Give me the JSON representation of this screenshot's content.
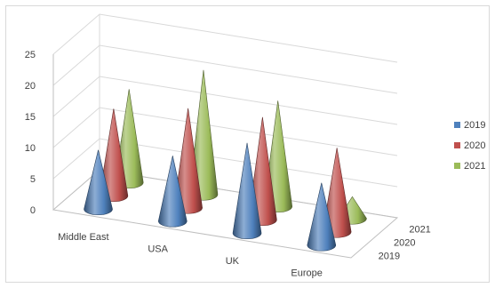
{
  "chart_data": {
    "type": "bar",
    "subtype": "3d-cone",
    "title": "",
    "xlabel": "",
    "ylabel": "",
    "categories": [
      "Middle East",
      "USA",
      "UK",
      "Europe"
    ],
    "series": [
      {
        "name": "2019",
        "values": [
          9.5,
          10.5,
          14.5,
          10
        ],
        "color": "#4f81bd"
      },
      {
        "name": "2020",
        "values": [
          14,
          16,
          16.5,
          13.5
        ],
        "color": "#c0504d"
      },
      {
        "name": "2021",
        "values": [
          15,
          20,
          17,
          3.5
        ],
        "color": "#9bbb59"
      }
    ],
    "depth_labels": [
      "2019",
      "2020",
      "2021"
    ],
    "y_ticks": [
      "0",
      "5",
      "10",
      "15",
      "20",
      "25"
    ],
    "ylim": [
      0,
      25
    ],
    "grid": true,
    "legend_position": "right"
  }
}
